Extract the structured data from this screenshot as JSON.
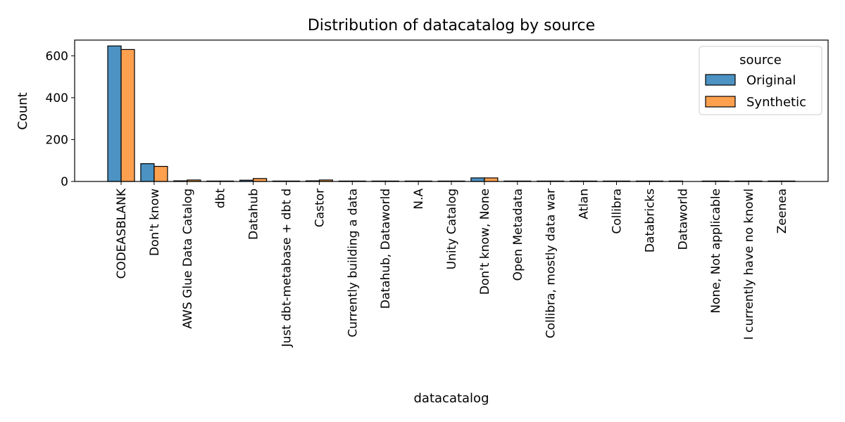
{
  "chart_data": {
    "type": "bar",
    "title": "Distribution of datacatalog by source",
    "xlabel": "datacatalog",
    "ylabel": "Count",
    "ylim": [
      0,
      675
    ],
    "yticks": [
      0,
      200,
      400,
      600
    ],
    "grid": false,
    "legend": {
      "title": "source",
      "position": "top-right"
    },
    "categories": [
      "CODEASBLANK",
      "Don't know",
      "AWS Glue Data Catalog",
      "dbt",
      "Datahub",
      "Just dbt-metabase + dbt d",
      "Castor",
      "Currently building a data",
      "Datahub, Dataworld",
      "N.A",
      "Unity Catalog",
      "Don't know, None",
      "Open Metadata",
      "Collibra, mostly data war",
      "Atlan",
      "Collibra",
      "Databricks",
      "Dataworld",
      "None, Not applicable",
      "I currently have no knowl",
      "Zeenea"
    ],
    "series": [
      {
        "name": "Original",
        "color": "#4c92c3",
        "values": [
          647,
          85,
          3,
          2,
          6,
          2,
          3,
          2,
          2,
          2,
          2,
          17,
          2,
          2,
          2,
          2,
          2,
          2,
          2,
          2,
          2
        ]
      },
      {
        "name": "Synthetic",
        "color": "#ffa04f",
        "values": [
          630,
          72,
          7,
          2,
          14,
          2,
          7,
          2,
          2,
          2,
          2,
          17,
          2,
          2,
          2,
          2,
          2,
          0,
          2,
          2,
          2
        ]
      }
    ]
  }
}
